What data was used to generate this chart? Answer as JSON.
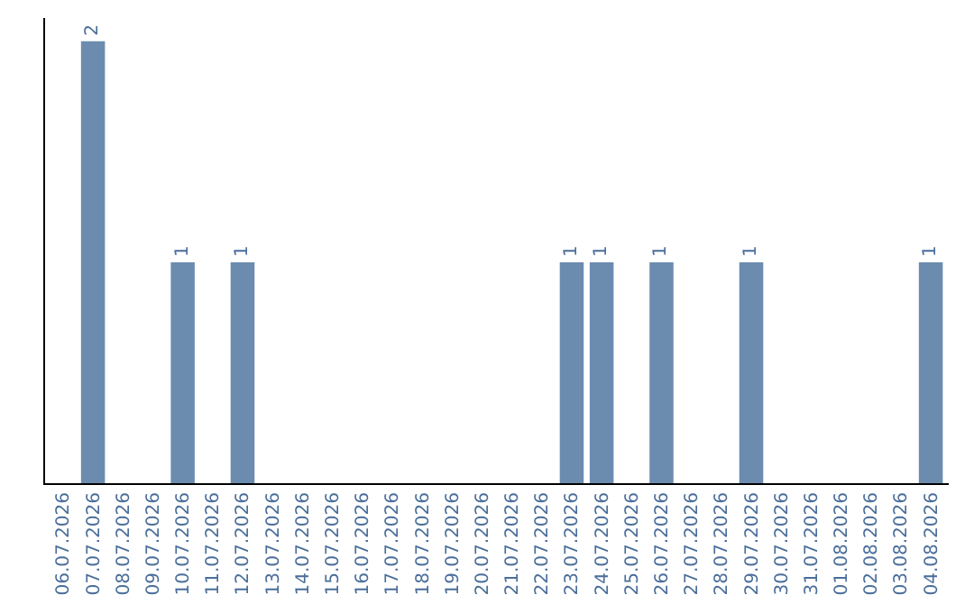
{
  "chart_data": {
    "type": "bar",
    "categories": [
      "06.07.2026",
      "07.07.2026",
      "08.07.2026",
      "09.07.2026",
      "10.07.2026",
      "11.07.2026",
      "12.07.2026",
      "13.07.2026",
      "14.07.2026",
      "15.07.2026",
      "16.07.2026",
      "17.07.2026",
      "18.07.2026",
      "19.07.2026",
      "20.07.2026",
      "21.07.2026",
      "22.07.2026",
      "23.07.2026",
      "24.07.2026",
      "25.07.2026",
      "26.07.2026",
      "27.07.2026",
      "28.07.2026",
      "29.07.2026",
      "30.07.2026",
      "31.07.2026",
      "01.08.2026",
      "02.08.2026",
      "03.08.2026",
      "04.08.2026"
    ],
    "values": [
      0,
      2,
      0,
      0,
      1,
      0,
      1,
      0,
      0,
      0,
      0,
      0,
      0,
      0,
      0,
      0,
      0,
      1,
      1,
      0,
      1,
      0,
      0,
      1,
      0,
      0,
      0,
      0,
      0,
      1
    ],
    "value_labels": [
      null,
      "2",
      null,
      null,
      "1",
      null,
      "1",
      null,
      null,
      null,
      null,
      null,
      null,
      null,
      null,
      null,
      null,
      "1",
      "1",
      null,
      "1",
      null,
      null,
      "1",
      null,
      null,
      null,
      null,
      null,
      "1"
    ],
    "color": "#6b8cae",
    "tick_labels": "x",
    "legend": false
  }
}
